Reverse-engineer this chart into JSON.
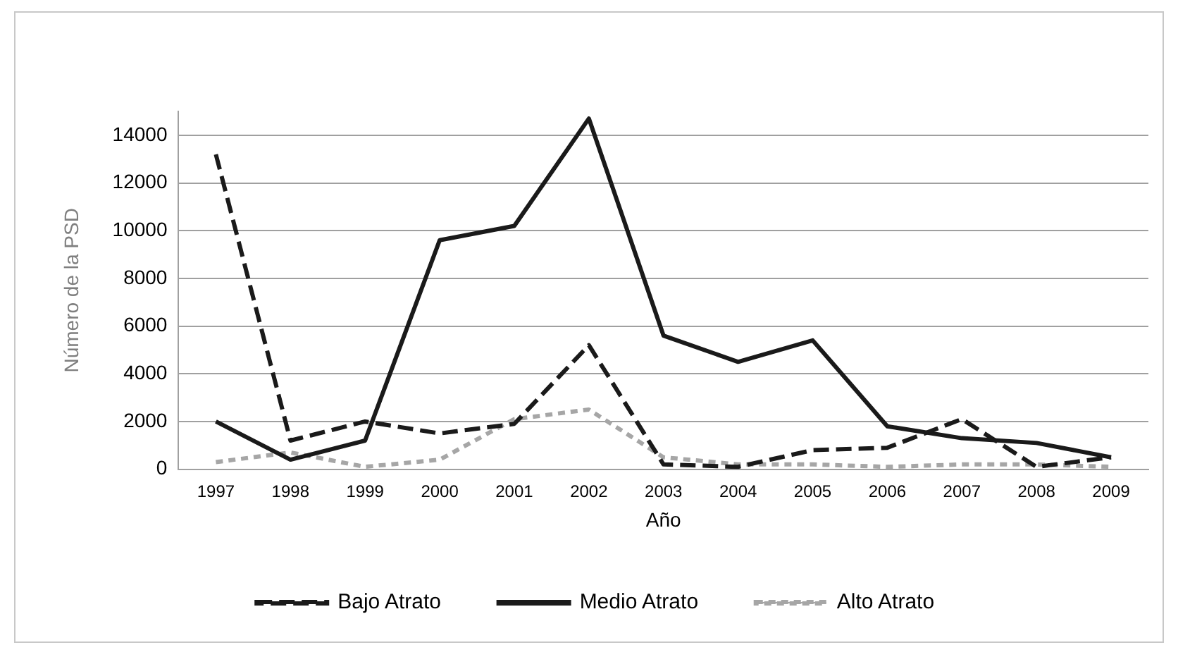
{
  "chart_data": {
    "type": "line",
    "xlabel": "Año",
    "ylabel": "Número de la PSD",
    "categories": [
      "1997",
      "1998",
      "1999",
      "2000",
      "2001",
      "2002",
      "2003",
      "2004",
      "2005",
      "2006",
      "2007",
      "2008",
      "2009"
    ],
    "series": [
      {
        "name": "Bajo Atrato",
        "color": "#1a1a1a",
        "line_style": "dashed",
        "values": [
          13200,
          1200,
          2000,
          1500,
          1900,
          5200,
          200,
          100,
          800,
          900,
          2100,
          100,
          500
        ]
      },
      {
        "name": "Medio Atrato",
        "color": "#1a1a1a",
        "line_style": "solid",
        "values": [
          2000,
          400,
          1200,
          9600,
          10200,
          14700,
          5600,
          4500,
          5400,
          1800,
          1300,
          1100,
          500
        ]
      },
      {
        "name": "Alto Atrato",
        "color": "#a6a6a6",
        "line_style": "dotted",
        "values": [
          300,
          700,
          100,
          400,
          2100,
          2500,
          500,
          200,
          200,
          100,
          200,
          200,
          100
        ]
      }
    ],
    "ylim": [
      0,
      15000
    ],
    "yticks": [
      0,
      2000,
      4000,
      6000,
      8000,
      10000,
      12000,
      14000
    ],
    "grid": "y",
    "legend": "bottom",
    "marker": "none"
  }
}
